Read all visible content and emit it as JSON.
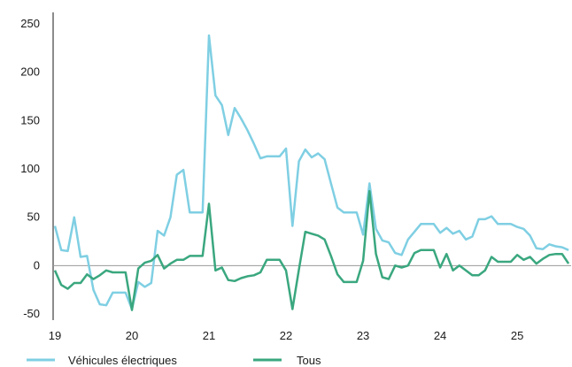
{
  "chart_data": {
    "type": "line",
    "x": [
      19.0,
      19.083,
      19.167,
      19.25,
      19.333,
      19.417,
      19.5,
      19.583,
      19.667,
      19.75,
      19.833,
      19.917,
      20.0,
      20.083,
      20.167,
      20.25,
      20.333,
      20.417,
      20.5,
      20.583,
      20.667,
      20.75,
      20.833,
      20.917,
      21.0,
      21.083,
      21.167,
      21.25,
      21.333,
      21.417,
      21.5,
      21.583,
      21.667,
      21.75,
      21.833,
      21.917,
      22.0,
      22.083,
      22.167,
      22.25,
      22.333,
      22.417,
      22.5,
      22.583,
      22.667,
      22.75,
      22.833,
      22.917,
      23.0,
      23.083,
      23.167,
      23.25,
      23.333,
      23.417,
      23.5,
      23.583,
      23.667,
      23.75,
      23.833,
      23.917,
      24.0,
      24.083,
      24.167,
      24.25,
      24.333,
      24.417,
      24.5,
      24.583,
      24.667,
      24.75,
      24.833,
      24.917,
      25.0,
      25.083,
      25.167,
      25.25,
      25.333,
      25.417,
      25.5,
      25.583,
      25.667
    ],
    "series": [
      {
        "name": "Véhicules électriques",
        "color": "#7fcfe3",
        "values": [
          41,
          16,
          15,
          50,
          9,
          10,
          -25,
          -40,
          -41,
          -28,
          -28,
          -28,
          -45,
          -17,
          -22,
          -18,
          36,
          31,
          50,
          94,
          99,
          55,
          55,
          55,
          238,
          176,
          166,
          135,
          163,
          152,
          140,
          126,
          111,
          113,
          113,
          113,
          121,
          41,
          108,
          120,
          112,
          116,
          110,
          85,
          60,
          55,
          55,
          55,
          32,
          85,
          38,
          26,
          24,
          13,
          11,
          27,
          35,
          43,
          43,
          43,
          34,
          39,
          33,
          36,
          27,
          30,
          48,
          48,
          51,
          43,
          43,
          43,
          40,
          38,
          31,
          18,
          17,
          22,
          20,
          19,
          16
        ]
      },
      {
        "name": "Tous",
        "color": "#3aa77f",
        "values": [
          -5,
          -20,
          -24,
          -18,
          -18,
          -9,
          -14,
          -10,
          -5,
          -7,
          -7,
          -7,
          -46,
          -3,
          3,
          5,
          11,
          -3,
          2,
          6,
          6,
          10,
          10,
          10,
          64,
          -5,
          -2,
          -15,
          -16,
          -13,
          -11,
          -10,
          -7,
          6,
          6,
          6,
          -5,
          -45,
          -4,
          35,
          33,
          31,
          27,
          10,
          -9,
          -17,
          -17,
          -17,
          5,
          77,
          12,
          -12,
          -14,
          0,
          -2,
          0,
          13,
          16,
          16,
          16,
          -2,
          12,
          -5,
          0,
          -5,
          -10,
          -10,
          -5,
          9,
          4,
          4,
          4,
          11,
          6,
          9,
          2,
          7,
          11,
          12,
          12,
          2
        ]
      }
    ],
    "xticks": [
      "19",
      "20",
      "21",
      "22",
      "23",
      "24",
      "25"
    ],
    "yticks": [
      "250",
      "200",
      "150",
      "100",
      "50",
      "0",
      "-50"
    ],
    "xlim": [
      19,
      25.7
    ],
    "ylim": [
      -50,
      250
    ],
    "zero_line": true,
    "grid": false,
    "legend_position": "bottom-left"
  }
}
